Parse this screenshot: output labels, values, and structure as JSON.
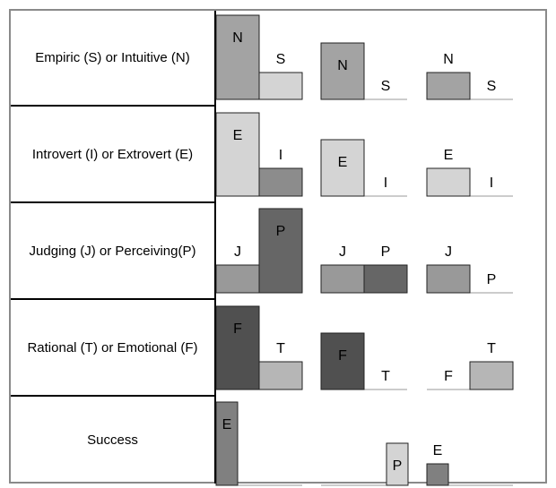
{
  "colors": {
    "light": "#d4d4d4",
    "medium": "#a3a3a3",
    "midDark": "#8c8c8c",
    "dark": "#666666",
    "darkest": "#505050",
    "mid2": "#999999",
    "lightMid": "#b6b6b6",
    "successGray": "#808080",
    "outline": "#222222"
  },
  "chart_data": {
    "type": "bar",
    "note_free_structure": true,
    "rows": [
      {
        "label": "Empiric (S) or Intuitive (N)",
        "groups": [
          {
            "bars": [
              {
                "letter": "N",
                "value": 1.0,
                "color": "medium",
                "text_inside": true
              },
              {
                "letter": "S",
                "value": 0.32,
                "color": "light",
                "text_inside": false
              }
            ]
          },
          {
            "bars": [
              {
                "letter": "N",
                "value": 0.67,
                "color": "medium",
                "text_inside": true
              },
              {
                "letter": "S",
                "value": 0.0,
                "color": "light",
                "text_inside": false
              }
            ]
          },
          {
            "bars": [
              {
                "letter": "N",
                "value": 0.32,
                "color": "medium",
                "text_inside": false
              },
              {
                "letter": "S",
                "value": 0.0,
                "color": "light",
                "text_inside": false
              }
            ]
          }
        ]
      },
      {
        "label": "Introvert (I) or Extrovert (E)",
        "groups": [
          {
            "bars": [
              {
                "letter": "E",
                "value": 0.99,
                "color": "light",
                "text_inside": true
              },
              {
                "letter": "I",
                "value": 0.33,
                "color": "midDark",
                "text_inside": false
              }
            ]
          },
          {
            "bars": [
              {
                "letter": "E",
                "value": 0.67,
                "color": "light",
                "text_inside": true
              },
              {
                "letter": "I",
                "value": 0.0,
                "color": "midDark",
                "text_inside": false
              }
            ]
          },
          {
            "bars": [
              {
                "letter": "E",
                "value": 0.33,
                "color": "light",
                "text_inside": false
              },
              {
                "letter": "I",
                "value": 0.0,
                "color": "midDark",
                "text_inside": false
              }
            ]
          }
        ]
      },
      {
        "label": "Judging (J) or Perceiving(P)",
        "groups": [
          {
            "bars": [
              {
                "letter": "J",
                "value": 0.33,
                "color": "mid2",
                "text_inside": false
              },
              {
                "letter": "P",
                "value": 1.0,
                "color": "dark",
                "text_inside": true
              }
            ]
          },
          {
            "bars": [
              {
                "letter": "J",
                "value": 0.33,
                "color": "mid2",
                "text_inside": false
              },
              {
                "letter": "P",
                "value": 0.33,
                "color": "dark",
                "text_inside": false
              }
            ]
          },
          {
            "bars": [
              {
                "letter": "J",
                "value": 0.33,
                "color": "mid2",
                "text_inside": false
              },
              {
                "letter": "P",
                "value": 0.0,
                "color": "dark",
                "text_inside": false
              }
            ]
          }
        ]
      },
      {
        "label": "Rational (T) or Emotional (F)",
        "groups": [
          {
            "bars": [
              {
                "letter": "F",
                "value": 0.99,
                "color": "darkest",
                "text_inside": true
              },
              {
                "letter": "T",
                "value": 0.33,
                "color": "lightMid",
                "text_inside": false
              }
            ]
          },
          {
            "bars": [
              {
                "letter": "F",
                "value": 0.67,
                "color": "darkest",
                "text_inside": true
              },
              {
                "letter": "T",
                "value": 0.0,
                "color": "lightMid",
                "text_inside": false
              }
            ]
          },
          {
            "bars": [
              {
                "letter": "F",
                "value": 0.0,
                "color": "darkest",
                "text_inside": false
              },
              {
                "letter": "T",
                "value": 0.33,
                "color": "lightMid",
                "text_inside": false
              }
            ]
          }
        ]
      },
      {
        "label": "Success",
        "groups": [
          {
            "bars": [
              {
                "letter": "E",
                "value": 0.99,
                "color": "successGray",
                "text_inside": true,
                "narrow": true
              }
            ]
          },
          {
            "bars": [
              {
                "letter": "P",
                "value": 0.5,
                "color": "light",
                "text_inside": true,
                "narrow": true,
                "offset": 1
              }
            ]
          },
          {
            "bars": [
              {
                "letter": "E",
                "value": 0.25,
                "color": "successGray",
                "text_inside": false,
                "narrow": true
              }
            ]
          }
        ]
      }
    ]
  }
}
